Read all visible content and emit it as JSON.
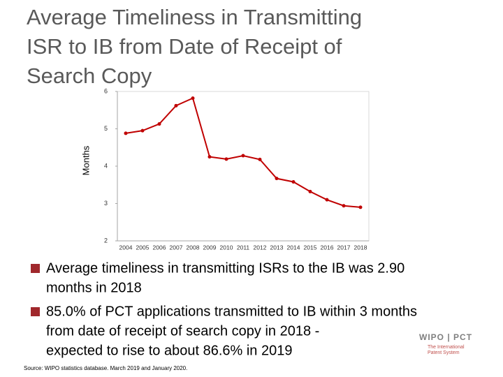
{
  "chart_data": {
    "type": "line",
    "title_lines": [
      "Average Timeliness in Transmitting",
      "ISR to IB from Date of Receipt of",
      "Search Copy"
    ],
    "y_label": "Months",
    "categories": [
      "2004",
      "2005",
      "2006",
      "2007",
      "2008",
      "2009",
      "2010",
      "2011",
      "2012",
      "2013",
      "2014",
      "2015",
      "2016",
      "2017",
      "2018"
    ],
    "values": [
      4.88,
      4.95,
      5.13,
      5.62,
      5.82,
      4.25,
      4.19,
      4.28,
      4.18,
      3.67,
      3.58,
      3.32,
      3.1,
      2.94,
      2.9
    ],
    "color": "#c00000",
    "ylim": [
      2,
      6
    ],
    "yticks": [
      2,
      3,
      4,
      5,
      6
    ],
    "grid": false
  },
  "bullets": [
    {
      "lines": [
        "Average timeliness in transmitting ISRs to the IB was 2.90",
        "months in 2018"
      ]
    },
    {
      "lines": [
        "85.0% of PCT applications transmitted to IB within 3 months",
        "from date of receipt of search copy in 2018 -",
        "expected to rise to about 86.6% in 2019"
      ]
    }
  ],
  "logo": {
    "title": "WIPO | PCT",
    "subtitle_lines": [
      "The International",
      "Patent System"
    ]
  },
  "source": "Source: WIPO statistics database. March 2019 and January 2020."
}
